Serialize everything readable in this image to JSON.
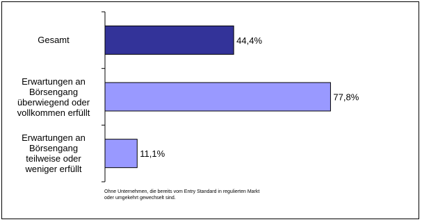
{
  "chart_data": {
    "type": "bar",
    "orientation": "horizontal",
    "categories": [
      "Gesamt",
      "Erwartungen an\nBörsengang\nüberwiegend oder\nvollkommen erfüllt",
      "Erwartungen an\nBörsengang\nteilweise oder\nweniger erfüllt"
    ],
    "values": [
      44.4,
      77.8,
      11.1
    ],
    "value_labels": [
      "44,4%",
      "77,8%",
      "11,1%"
    ],
    "bar_colors": [
      "#333399",
      "#9999ff",
      "#9999ff"
    ],
    "xlim": [
      0,
      100
    ],
    "grid": false,
    "title": "",
    "xlabel": "",
    "ylabel": ""
  },
  "footnote": "Ohne Unternehmen, die bereits vom Entry Standard in regulierten Markt\noder umgekehrt gewechselt sind."
}
